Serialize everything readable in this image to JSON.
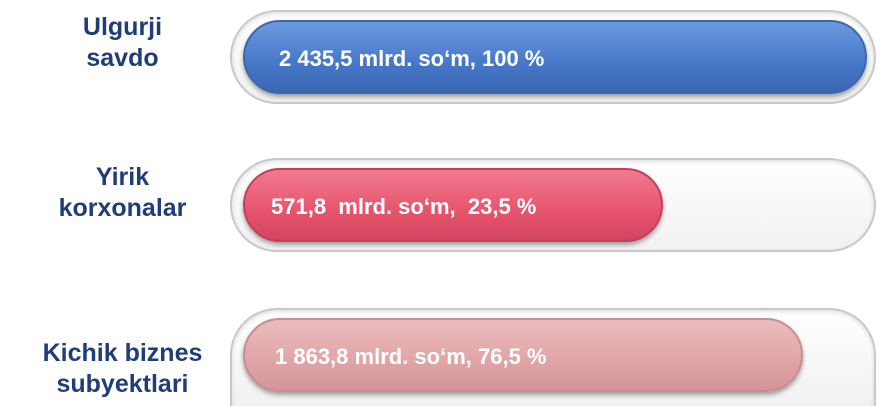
{
  "rows": [
    {
      "label": [
        "Ulgurji",
        "savdo"
      ],
      "text": "2 435,5 mlrd. so‘m, 100 %"
    },
    {
      "label": [
        "Yirik",
        "korxonalar"
      ],
      "text": "571,8  mlrd. so‘m,  23,5 %"
    },
    {
      "label": [
        "Kichik biznes",
        "subyektlari"
      ],
      "text": "1 863,8 mlrd. so‘m, 76,5 %"
    }
  ]
}
